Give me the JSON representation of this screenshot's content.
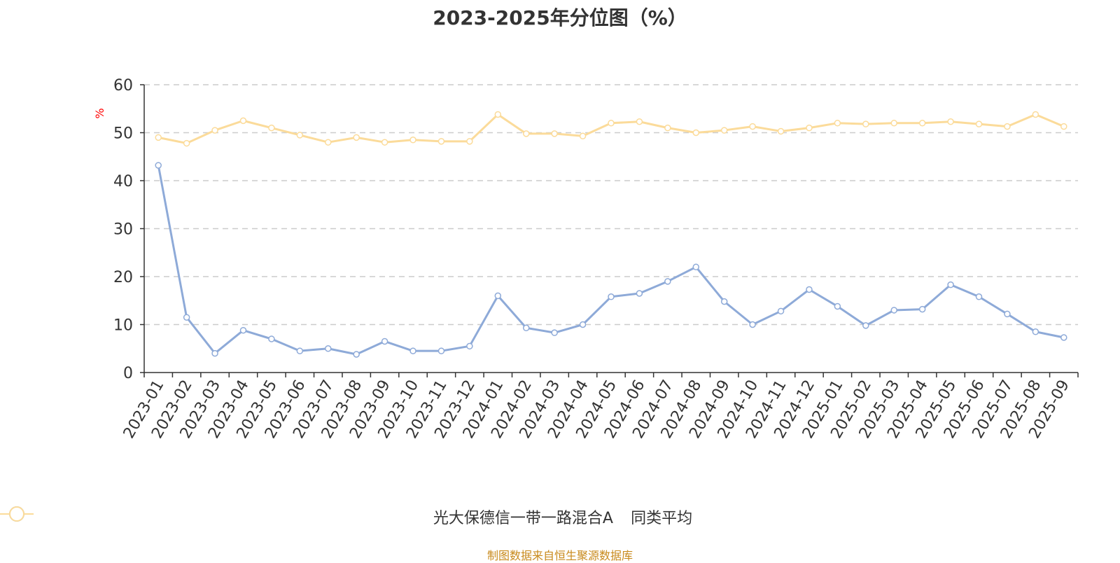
{
  "title": "2023-2025年分位图（%）",
  "source": "制图数据来自恒生聚源数据库",
  "chart_data": {
    "type": "line",
    "ylabel": "%",
    "ylim": [
      0,
      60
    ],
    "yticks": [
      0,
      10,
      20,
      30,
      40,
      50,
      60
    ],
    "grid": true,
    "legend_position": "bottom",
    "categories": [
      "2023-01",
      "2023-02",
      "2023-03",
      "2023-04",
      "2023-05",
      "2023-06",
      "2023-07",
      "2023-08",
      "2023-09",
      "2023-10",
      "2023-11",
      "2023-12",
      "2024-01",
      "2024-02",
      "2024-03",
      "2024-04",
      "2024-05",
      "2024-06",
      "2024-07",
      "2024-08",
      "2024-09",
      "2024-10",
      "2024-11",
      "2024-12",
      "2025-01",
      "2025-02",
      "2025-03",
      "2025-04",
      "2025-05",
      "2025-06",
      "2025-07",
      "2025-08",
      "2025-09"
    ],
    "series": [
      {
        "name": "光大保德信一带一路混合A",
        "color": "#8eaad8",
        "values": [
          43.2,
          11.5,
          4.0,
          8.8,
          7.0,
          4.5,
          5.0,
          3.8,
          6.5,
          4.5,
          4.5,
          5.5,
          16.0,
          9.3,
          8.3,
          10.0,
          15.8,
          16.5,
          19.0,
          22.0,
          14.8,
          10.0,
          12.8,
          17.3,
          13.8,
          9.8,
          13.0,
          13.2,
          18.3,
          15.8,
          12.2,
          8.5,
          7.3
        ]
      },
      {
        "name": "同类平均",
        "color": "#fbdb9a",
        "values": [
          49.0,
          47.8,
          50.5,
          52.5,
          51.0,
          49.5,
          48.0,
          49.0,
          48.0,
          48.5,
          48.2,
          48.2,
          53.8,
          49.8,
          49.8,
          49.3,
          52.0,
          52.3,
          51.0,
          50.0,
          50.5,
          51.3,
          50.3,
          51.0,
          52.0,
          51.8,
          52.0,
          52.0,
          52.3,
          51.8,
          51.3,
          53.8,
          51.3
        ]
      }
    ]
  }
}
